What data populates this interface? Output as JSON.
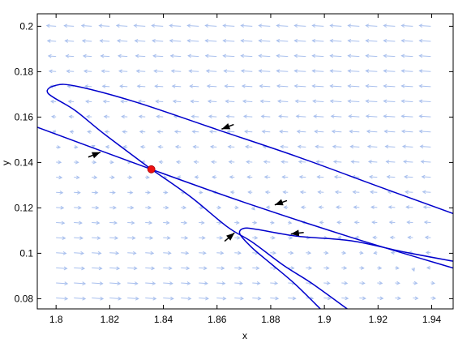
{
  "chart_data": {
    "type": "line",
    "title": "",
    "xlabel": "x",
    "ylabel": "y",
    "xlim": [
      1.793,
      1.948
    ],
    "ylim": [
      0.0755,
      0.2055
    ],
    "x_ticks": [
      1.8,
      1.82,
      1.84,
      1.86,
      1.88,
      1.9,
      1.92,
      1.94
    ],
    "y_ticks": [
      0.08,
      0.1,
      0.12,
      0.14,
      0.16,
      0.18,
      0.2
    ],
    "x_tick_labels": [
      "1.8",
      "1.82",
      "1.84",
      "1.86",
      "1.88",
      "1.9",
      "1.92",
      "1.94"
    ],
    "y_tick_labels": [
      "0.08",
      "0.1",
      "0.12",
      "0.14",
      "0.16",
      "0.18",
      "0.2"
    ],
    "grid": false,
    "legend": "none",
    "colors": {
      "trajectory": "#0000cc",
      "vector_field": "#a9c0ee",
      "equilibrium": "#ee1111",
      "direction_arrow": "#000000"
    },
    "equilibrium": {
      "x": 1.8355,
      "y": 0.137
    },
    "vector_field": {
      "x_start": 1.8,
      "x_step": 0.00665,
      "x_count": 22,
      "y_start": 0.2,
      "y_step": -0.00665,
      "y_count": 19
    },
    "series": [
      {
        "values": [
          {
            "x": 1.793,
            "y": 0.1555
          },
          {
            "x": 1.8355,
            "y": 0.137
          },
          {
            "x": 1.87,
            "y": 0.1225
          },
          {
            "x": 1.91,
            "y": 0.107
          },
          {
            "x": 1.948,
            "y": 0.0935
          }
        ]
      },
      {
        "values": [
          {
            "x": 1.948,
            "y": 0.1175
          },
          {
            "x": 1.92,
            "y": 0.1295
          },
          {
            "x": 1.89,
            "y": 0.1425
          },
          {
            "x": 1.86,
            "y": 0.1545
          },
          {
            "x": 1.83,
            "y": 0.1665
          },
          {
            "x": 1.808,
            "y": 0.1735
          },
          {
            "x": 1.8,
            "y": 0.174
          },
          {
            "x": 1.797,
            "y": 0.1705
          },
          {
            "x": 1.807,
            "y": 0.163
          },
          {
            "x": 1.818,
            "y": 0.1525
          },
          {
            "x": 1.8355,
            "y": 0.137
          }
        ]
      },
      {
        "values": [
          {
            "x": 1.8355,
            "y": 0.137
          },
          {
            "x": 1.85,
            "y": 0.125
          },
          {
            "x": 1.864,
            "y": 0.1115
          },
          {
            "x": 1.873,
            "y": 0.105
          },
          {
            "x": 1.885,
            "y": 0.0945
          },
          {
            "x": 1.895,
            "y": 0.087
          },
          {
            "x": 1.9085,
            "y": 0.0755
          }
        ]
      },
      {
        "values": [
          {
            "x": 1.948,
            "y": 0.0965
          },
          {
            "x": 1.93,
            "y": 0.1005
          },
          {
            "x": 1.91,
            "y": 0.1055
          },
          {
            "x": 1.89,
            "y": 0.1075
          },
          {
            "x": 1.875,
            "y": 0.1105
          },
          {
            "x": 1.87,
            "y": 0.111
          },
          {
            "x": 1.8685,
            "y": 0.1085
          },
          {
            "x": 1.873,
            "y": 0.1025
          },
          {
            "x": 1.88,
            "y": 0.0955
          },
          {
            "x": 1.889,
            "y": 0.0865
          },
          {
            "x": 1.8985,
            "y": 0.0755
          }
        ]
      }
    ],
    "direction_arrows": [
      {
        "x": 1.8165,
        "y": 0.1445,
        "dx": 1,
        "dy": -0.4
      },
      {
        "x": 1.8617,
        "y": 0.1547,
        "dx": -1,
        "dy": 0.38
      },
      {
        "x": 1.8815,
        "y": 0.1213,
        "dx": -1,
        "dy": 0.35
      },
      {
        "x": 1.8875,
        "y": 0.1085,
        "dx": -1,
        "dy": 0.12
      },
      {
        "x": 1.8665,
        "y": 0.109,
        "dx": 1,
        "dy": -0.85
      }
    ]
  }
}
